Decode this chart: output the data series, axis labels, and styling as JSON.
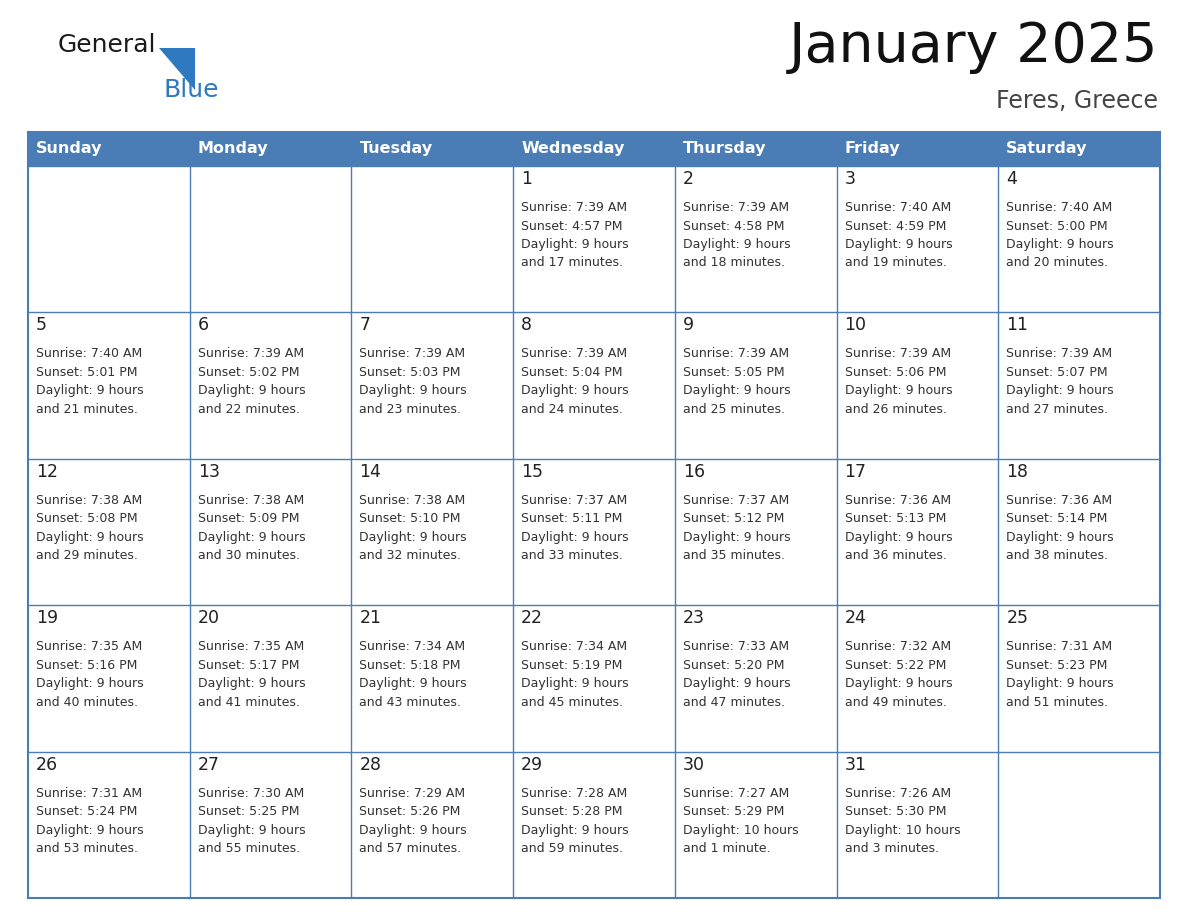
{
  "title": "January 2025",
  "subtitle": "Feres, Greece",
  "header_bg": "#4a7cb5",
  "header_text_color": "#ffffff",
  "border_color": "#4a7cb5",
  "cell_text_color": "#333333",
  "day_num_color": "#222222",
  "days_of_week": [
    "Sunday",
    "Monday",
    "Tuesday",
    "Wednesday",
    "Thursday",
    "Friday",
    "Saturday"
  ],
  "weeks": [
    [
      {
        "day": "",
        "info": ""
      },
      {
        "day": "",
        "info": ""
      },
      {
        "day": "",
        "info": ""
      },
      {
        "day": "1",
        "info": "Sunrise: 7:39 AM\nSunset: 4:57 PM\nDaylight: 9 hours\nand 17 minutes."
      },
      {
        "day": "2",
        "info": "Sunrise: 7:39 AM\nSunset: 4:58 PM\nDaylight: 9 hours\nand 18 minutes."
      },
      {
        "day": "3",
        "info": "Sunrise: 7:40 AM\nSunset: 4:59 PM\nDaylight: 9 hours\nand 19 minutes."
      },
      {
        "day": "4",
        "info": "Sunrise: 7:40 AM\nSunset: 5:00 PM\nDaylight: 9 hours\nand 20 minutes."
      }
    ],
    [
      {
        "day": "5",
        "info": "Sunrise: 7:40 AM\nSunset: 5:01 PM\nDaylight: 9 hours\nand 21 minutes."
      },
      {
        "day": "6",
        "info": "Sunrise: 7:39 AM\nSunset: 5:02 PM\nDaylight: 9 hours\nand 22 minutes."
      },
      {
        "day": "7",
        "info": "Sunrise: 7:39 AM\nSunset: 5:03 PM\nDaylight: 9 hours\nand 23 minutes."
      },
      {
        "day": "8",
        "info": "Sunrise: 7:39 AM\nSunset: 5:04 PM\nDaylight: 9 hours\nand 24 minutes."
      },
      {
        "day": "9",
        "info": "Sunrise: 7:39 AM\nSunset: 5:05 PM\nDaylight: 9 hours\nand 25 minutes."
      },
      {
        "day": "10",
        "info": "Sunrise: 7:39 AM\nSunset: 5:06 PM\nDaylight: 9 hours\nand 26 minutes."
      },
      {
        "day": "11",
        "info": "Sunrise: 7:39 AM\nSunset: 5:07 PM\nDaylight: 9 hours\nand 27 minutes."
      }
    ],
    [
      {
        "day": "12",
        "info": "Sunrise: 7:38 AM\nSunset: 5:08 PM\nDaylight: 9 hours\nand 29 minutes."
      },
      {
        "day": "13",
        "info": "Sunrise: 7:38 AM\nSunset: 5:09 PM\nDaylight: 9 hours\nand 30 minutes."
      },
      {
        "day": "14",
        "info": "Sunrise: 7:38 AM\nSunset: 5:10 PM\nDaylight: 9 hours\nand 32 minutes."
      },
      {
        "day": "15",
        "info": "Sunrise: 7:37 AM\nSunset: 5:11 PM\nDaylight: 9 hours\nand 33 minutes."
      },
      {
        "day": "16",
        "info": "Sunrise: 7:37 AM\nSunset: 5:12 PM\nDaylight: 9 hours\nand 35 minutes."
      },
      {
        "day": "17",
        "info": "Sunrise: 7:36 AM\nSunset: 5:13 PM\nDaylight: 9 hours\nand 36 minutes."
      },
      {
        "day": "18",
        "info": "Sunrise: 7:36 AM\nSunset: 5:14 PM\nDaylight: 9 hours\nand 38 minutes."
      }
    ],
    [
      {
        "day": "19",
        "info": "Sunrise: 7:35 AM\nSunset: 5:16 PM\nDaylight: 9 hours\nand 40 minutes."
      },
      {
        "day": "20",
        "info": "Sunrise: 7:35 AM\nSunset: 5:17 PM\nDaylight: 9 hours\nand 41 minutes."
      },
      {
        "day": "21",
        "info": "Sunrise: 7:34 AM\nSunset: 5:18 PM\nDaylight: 9 hours\nand 43 minutes."
      },
      {
        "day": "22",
        "info": "Sunrise: 7:34 AM\nSunset: 5:19 PM\nDaylight: 9 hours\nand 45 minutes."
      },
      {
        "day": "23",
        "info": "Sunrise: 7:33 AM\nSunset: 5:20 PM\nDaylight: 9 hours\nand 47 minutes."
      },
      {
        "day": "24",
        "info": "Sunrise: 7:32 AM\nSunset: 5:22 PM\nDaylight: 9 hours\nand 49 minutes."
      },
      {
        "day": "25",
        "info": "Sunrise: 7:31 AM\nSunset: 5:23 PM\nDaylight: 9 hours\nand 51 minutes."
      }
    ],
    [
      {
        "day": "26",
        "info": "Sunrise: 7:31 AM\nSunset: 5:24 PM\nDaylight: 9 hours\nand 53 minutes."
      },
      {
        "day": "27",
        "info": "Sunrise: 7:30 AM\nSunset: 5:25 PM\nDaylight: 9 hours\nand 55 minutes."
      },
      {
        "day": "28",
        "info": "Sunrise: 7:29 AM\nSunset: 5:26 PM\nDaylight: 9 hours\nand 57 minutes."
      },
      {
        "day": "29",
        "info": "Sunrise: 7:28 AM\nSunset: 5:28 PM\nDaylight: 9 hours\nand 59 minutes."
      },
      {
        "day": "30",
        "info": "Sunrise: 7:27 AM\nSunset: 5:29 PM\nDaylight: 10 hours\nand 1 minute."
      },
      {
        "day": "31",
        "info": "Sunrise: 7:26 AM\nSunset: 5:30 PM\nDaylight: 10 hours\nand 3 minutes."
      },
      {
        "day": "",
        "info": ""
      }
    ]
  ],
  "logo_general_color": "#1a1a1a",
  "logo_blue_color": "#2e79c0",
  "figsize": [
    11.88,
    9.18
  ],
  "dpi": 100
}
